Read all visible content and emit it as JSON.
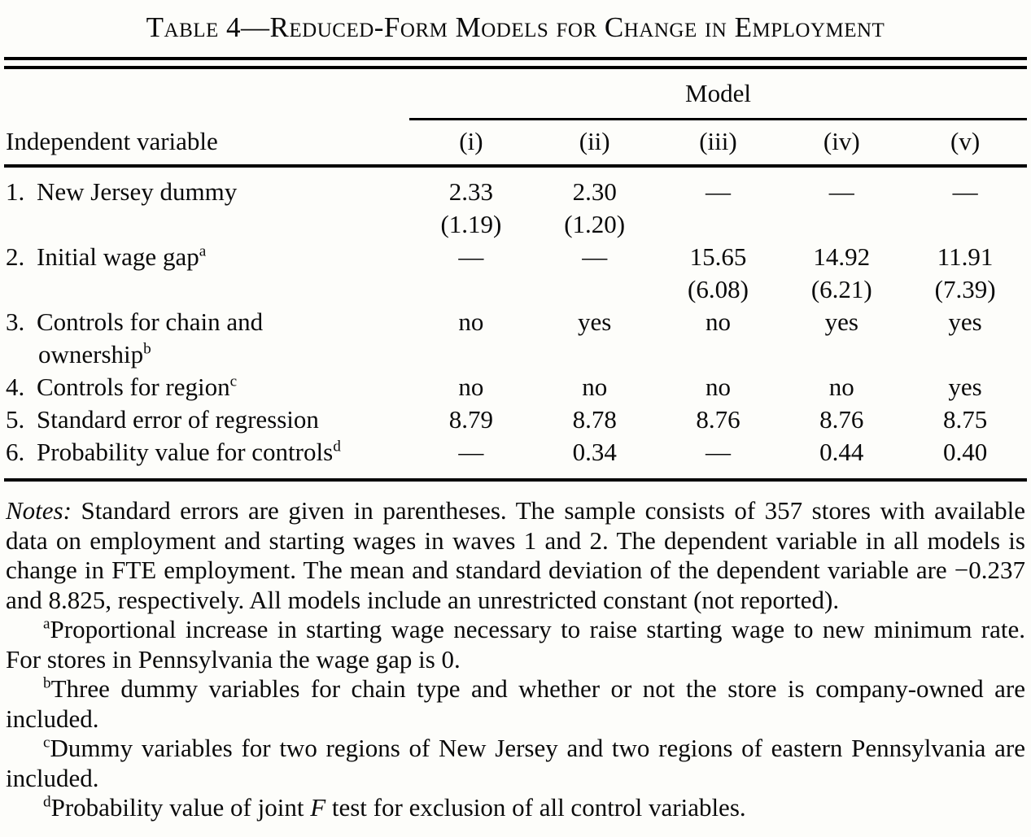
{
  "title": "Table 4—Reduced-Form Models for Change in Employment",
  "table": {
    "group_header": "Model",
    "header": {
      "label": "Independent variable",
      "cols": [
        "(i)",
        "(ii)",
        "(iii)",
        "(iv)",
        "(v)"
      ]
    },
    "rows": [
      {
        "num": "1.",
        "label": "New Jersey dummy",
        "values": [
          "2.33",
          "2.30",
          "—",
          "—",
          "—"
        ],
        "se": [
          "(1.19)",
          "(1.20)",
          "",
          "",
          ""
        ]
      },
      {
        "num": "2.",
        "label": "Initial wage gap",
        "sup": "a",
        "values": [
          "—",
          "—",
          "15.65",
          "14.92",
          "11.91"
        ],
        "se": [
          "",
          "",
          "(6.08)",
          "(6.21)",
          "(7.39)"
        ]
      },
      {
        "num": "3.",
        "label": "Controls for chain and",
        "label2": "ownership",
        "sup2": "b",
        "values": [
          "no",
          "yes",
          "no",
          "yes",
          "yes"
        ]
      },
      {
        "num": "4.",
        "label": "Controls for region",
        "sup": "c",
        "values": [
          "no",
          "no",
          "no",
          "no",
          "yes"
        ]
      },
      {
        "num": "5.",
        "label": "Standard error of regression",
        "values": [
          "8.79",
          "8.78",
          "8.76",
          "8.76",
          "8.75"
        ]
      },
      {
        "num": "6.",
        "label": "Probability value for controls",
        "sup": "d",
        "values": [
          "—",
          "0.34",
          "—",
          "0.44",
          "0.40"
        ]
      }
    ]
  },
  "notes": {
    "label": "Notes:",
    "body": "Standard errors are given in parentheses. The sample consists of 357 stores with available data on employment and starting wages in waves 1 and 2. The dependent variable in all models is change in FTE employment. The mean and standard deviation of the dependent variable are −0.237 and 8.825, respectively. All models include an unrestricted constant (not reported).",
    "footnotes": [
      {
        "marker": "a",
        "pre": "Proportional increase in starting wage necessary to raise starting wage to new minimum rate. For stores in Pennsylvania the wage gap is 0."
      },
      {
        "marker": "b",
        "pre": "Three dummy variables for chain type and whether or not the store is company-owned are included."
      },
      {
        "marker": "c",
        "pre": "Dummy variables for two regions of New Jersey and two regions of eastern Pennsylvania are included."
      },
      {
        "marker": "d",
        "pre": "Probability value of joint ",
        "italic": "F",
        "post": " test for exclusion of all control variables."
      }
    ]
  }
}
